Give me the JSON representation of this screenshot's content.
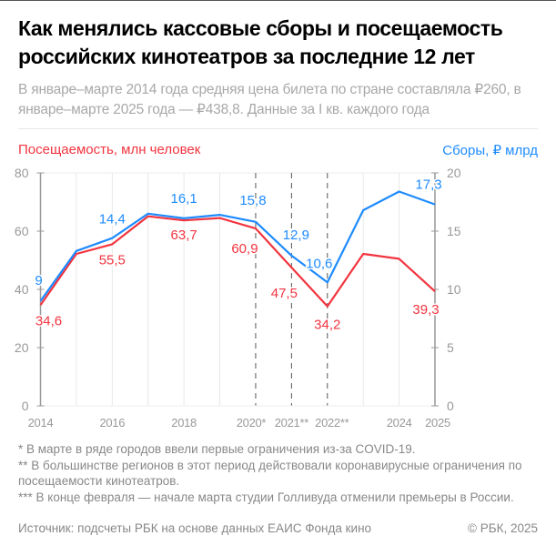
{
  "header": {
    "title": "Как менялись кассовые сборы и посещаемость российских кинотеатров за последние 12 лет",
    "subtitle": "В январе–марте 2014 года средняя цена билета по стране составляла ₽260, в январе–марте 2025 года — ₽438,8. Данные за I кв. каждого года"
  },
  "chart_data": {
    "type": "line",
    "x": [
      2014,
      2015,
      2016,
      2017,
      2018,
      2019,
      2020,
      2021,
      2022,
      2023,
      2024,
      2025
    ],
    "x_tick_labels": {
      "2014": "2014",
      "2016": "2016",
      "2018": "2018",
      "2020": "2020*",
      "2021": "2021**",
      "2022": "2022**",
      "2024": "2024",
      "2025": "2025"
    },
    "dashed_years": [
      2020,
      2021,
      2022
    ],
    "left_axis": {
      "label": "Посещаемость, млн человек",
      "ylim": [
        0,
        80
      ],
      "ticks": [
        0,
        20,
        40,
        60,
        80
      ]
    },
    "right_axis": {
      "label": "Сборы, ₽ млрд",
      "ylim": [
        0,
        20
      ],
      "ticks": [
        0,
        5,
        10,
        15,
        20
      ]
    },
    "series": [
      {
        "name": "Посещаемость, млн человек",
        "axis": "left",
        "color": "#f2343f",
        "values": [
          34.6,
          52.2,
          55.5,
          65.1,
          63.7,
          64.5,
          60.9,
          47.5,
          34.2,
          52.2,
          50.5,
          39.3
        ],
        "labels": {
          "2014": "34,6",
          "2016": "55,5",
          "2018": "63,7",
          "2020": "60,9",
          "2021": "47,5",
          "2022": "34,2",
          "2025": "39,3"
        }
      },
      {
        "name": "Сборы, ₽ млрд",
        "axis": "right",
        "color": "#1e8bff",
        "values": [
          9.0,
          13.3,
          14.4,
          16.5,
          16.1,
          16.4,
          15.8,
          12.9,
          10.6,
          16.8,
          18.4,
          17.3
        ],
        "labels": {
          "2014": "9",
          "2016": "14,4",
          "2018": "16,1",
          "2020": "15,8",
          "2021": "12,9",
          "2022": "10,6",
          "2025": "17,3"
        }
      }
    ],
    "grid": "vertical"
  },
  "notes": [
    "* В марте в ряде городов ввели первые ограничения из-за COVID-19.",
    "** В большинстве регионов в этот период действовали коронавирусные ограничения по посещаемости кинотеатров.",
    "*** В конце февраля — начале марта студии Голливуда отменили премьеры в России."
  ],
  "footer": {
    "source": "Источник: подсчеты РБК на основе данных ЕАИС Фонда кино",
    "copyright": "© РБК, 2025"
  }
}
